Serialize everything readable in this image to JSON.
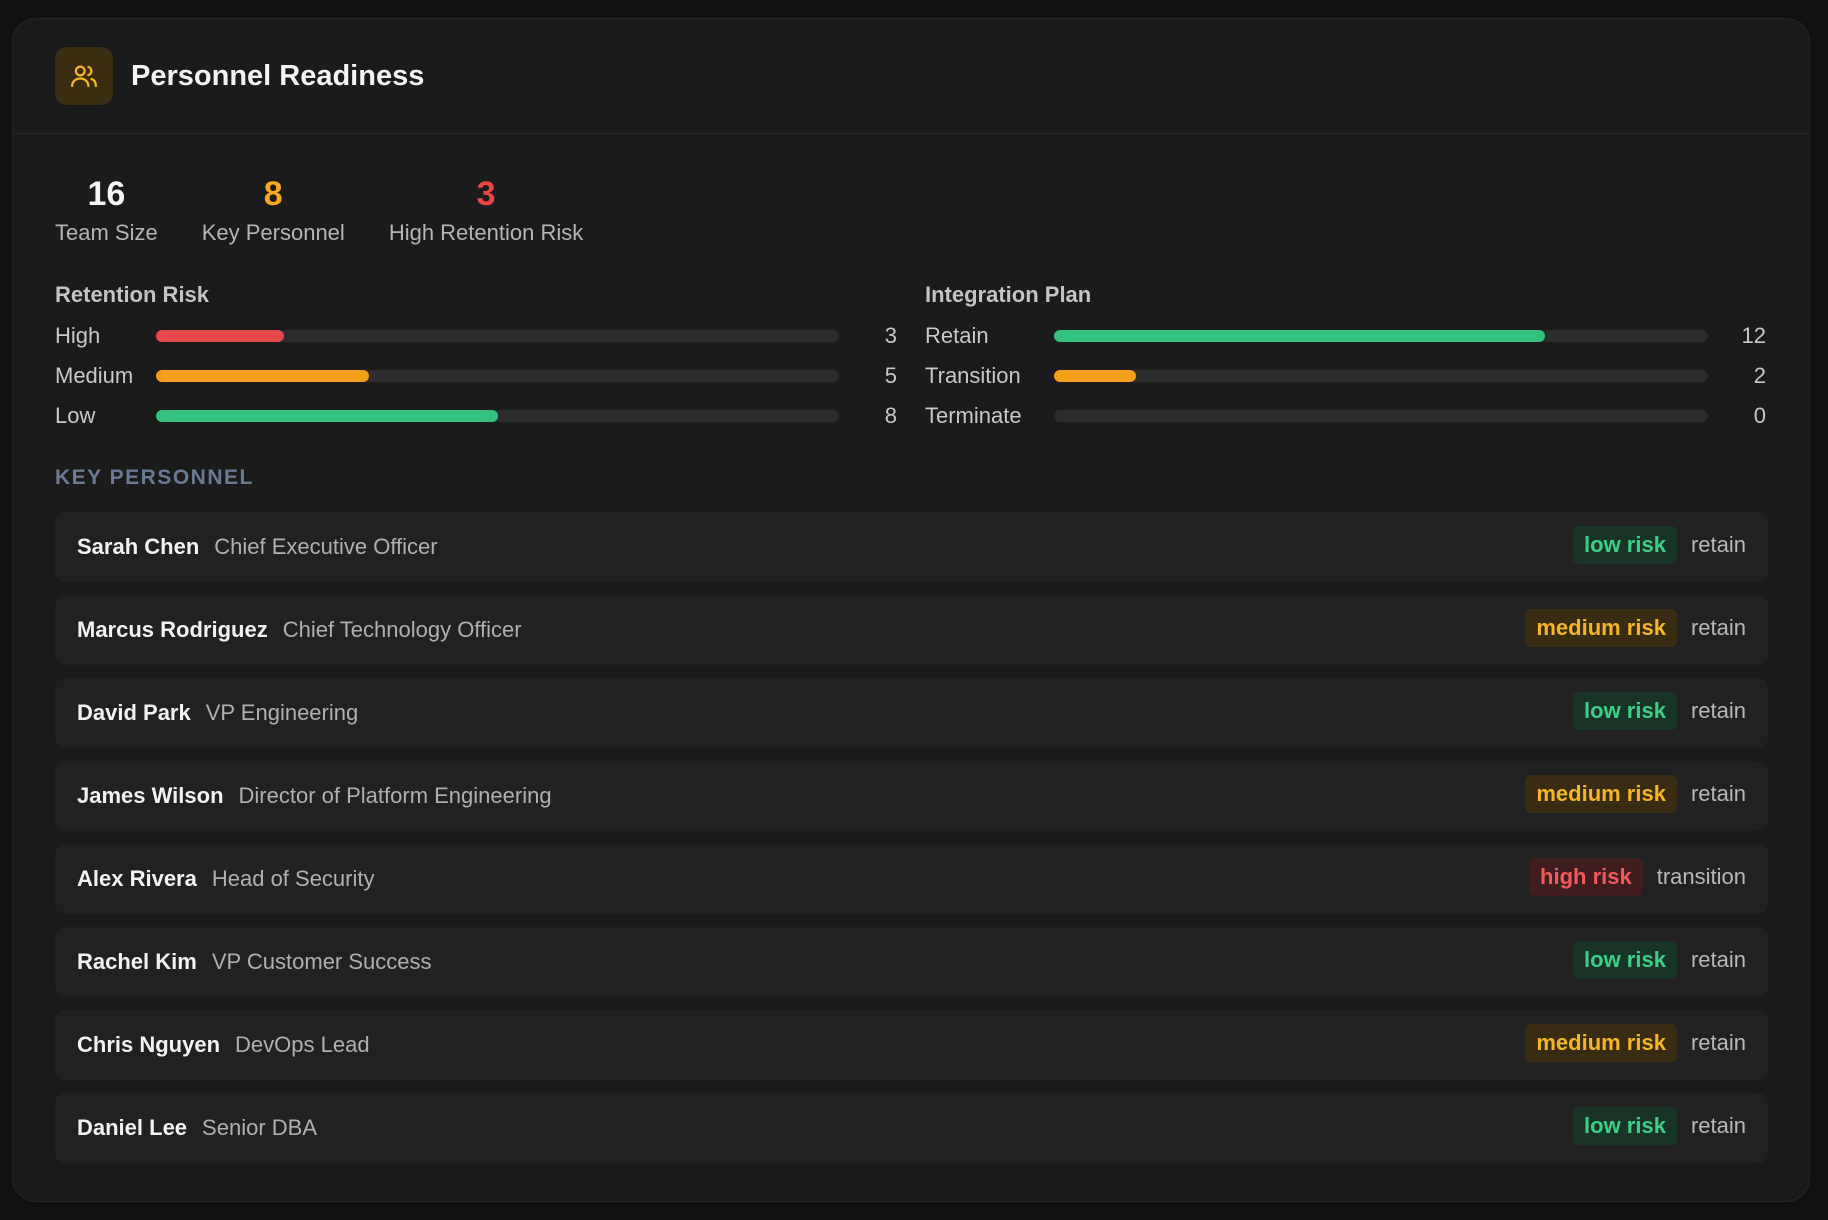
{
  "header": {
    "title": "Personnel Readiness",
    "icon": "users-icon"
  },
  "stats": [
    {
      "value": "16",
      "label": "Team Size",
      "color": "#f4f4f4"
    },
    {
      "value": "8",
      "label": "Key Personnel",
      "color": "#f5a623"
    },
    {
      "value": "3",
      "label": "High Retention Risk",
      "color": "#ef4444"
    }
  ],
  "retention_risk": {
    "title": "Retention Risk",
    "rows": [
      {
        "label": "High",
        "count": "3",
        "fraction": 0.1875,
        "color": "#e5484d"
      },
      {
        "label": "Medium",
        "count": "5",
        "fraction": 0.3125,
        "color": "#f5a01c"
      },
      {
        "label": "Low",
        "count": "8",
        "fraction": 0.5,
        "color": "#34c17b"
      }
    ]
  },
  "integration_plan": {
    "title": "Integration Plan",
    "rows": [
      {
        "label": "Retain",
        "count": "12",
        "fraction": 0.75,
        "color": "#34c17b"
      },
      {
        "label": "Transition",
        "count": "2",
        "fraction": 0.125,
        "color": "#f5a01c"
      },
      {
        "label": "Terminate",
        "count": "0",
        "fraction": 0.0,
        "color": "#e5484d"
      }
    ]
  },
  "key_personnel": {
    "title": "KEY PERSONNEL",
    "people": [
      {
        "name": "Sarah Chen",
        "role": "Chief Executive Officer",
        "risk": "low risk",
        "risk_level": "low",
        "plan": "retain"
      },
      {
        "name": "Marcus Rodriguez",
        "role": "Chief Technology Officer",
        "risk": "medium risk",
        "risk_level": "medium",
        "plan": "retain"
      },
      {
        "name": "David Park",
        "role": "VP Engineering",
        "risk": "low risk",
        "risk_level": "low",
        "plan": "retain"
      },
      {
        "name": "James Wilson",
        "role": "Director of Platform Engineering",
        "risk": "medium risk",
        "risk_level": "medium",
        "plan": "retain"
      },
      {
        "name": "Alex Rivera",
        "role": "Head of Security",
        "risk": "high risk",
        "risk_level": "high",
        "plan": "transition"
      },
      {
        "name": "Rachel Kim",
        "role": "VP Customer Success",
        "risk": "low risk",
        "risk_level": "low",
        "plan": "retain"
      },
      {
        "name": "Chris Nguyen",
        "role": "DevOps Lead",
        "risk": "medium risk",
        "risk_level": "medium",
        "plan": "retain"
      },
      {
        "name": "Daniel Lee",
        "role": "Senior DBA",
        "risk": "low risk",
        "risk_level": "low",
        "plan": "retain"
      }
    ]
  }
}
